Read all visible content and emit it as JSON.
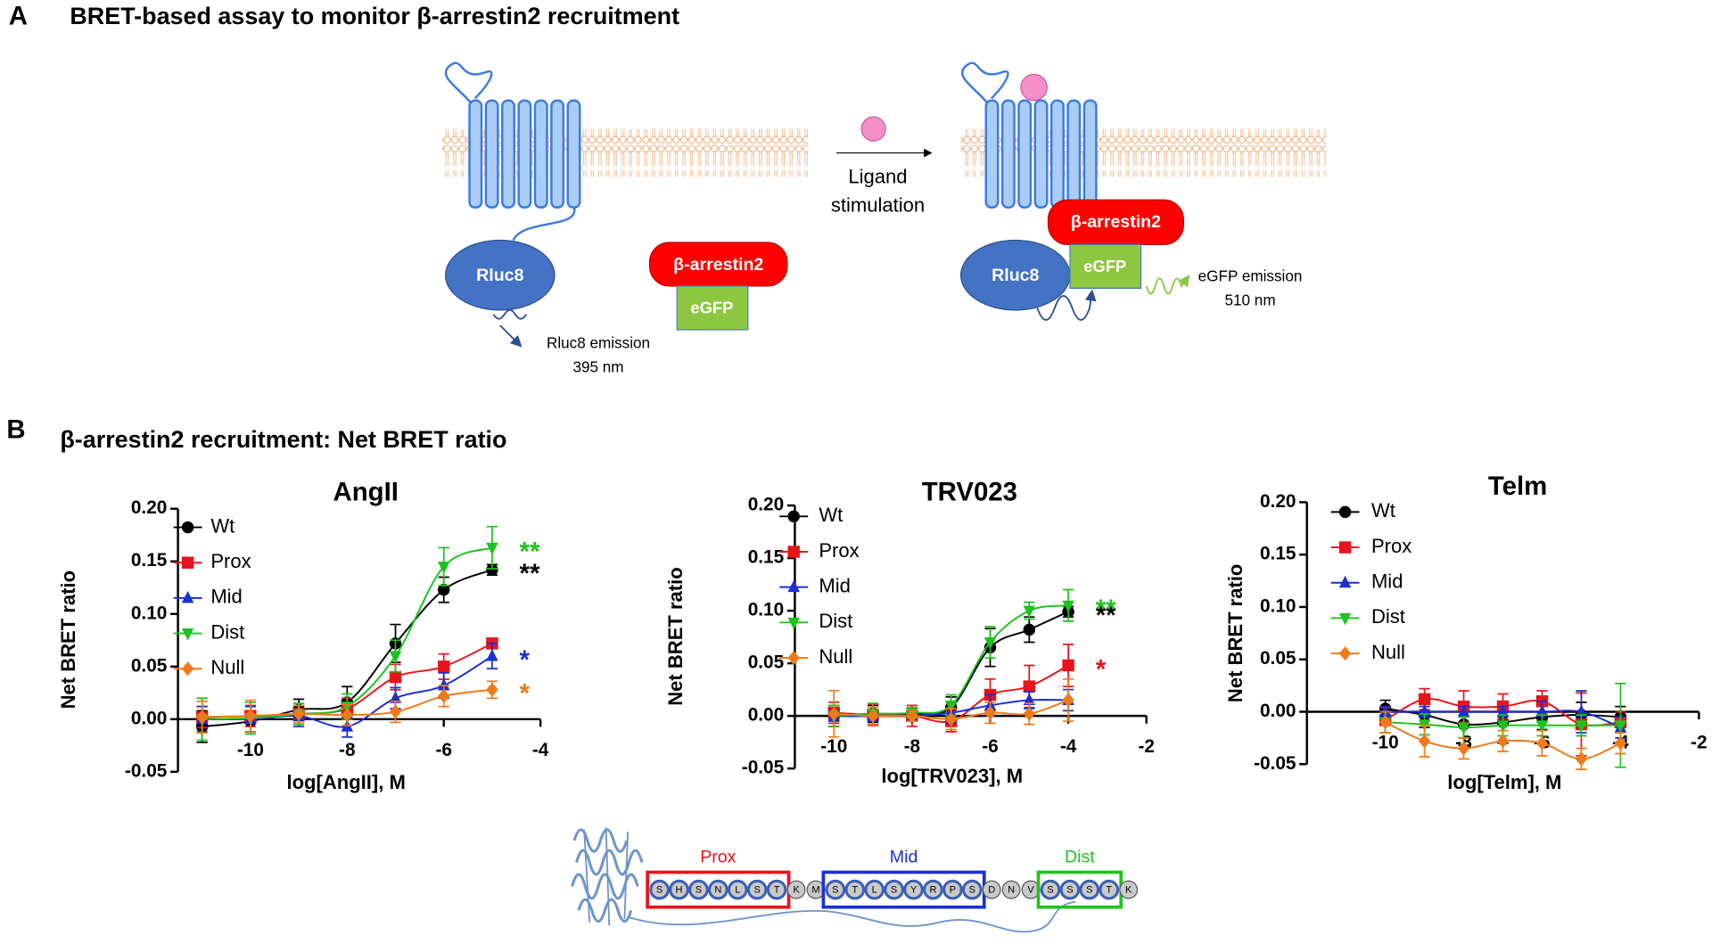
{
  "panel_a": {
    "label": "A",
    "title": "BRET-based assay to monitor β-arrestin2 recruitment",
    "left": {
      "donor": "Rluc8",
      "arrestin": "β-arrestin2",
      "acceptor": "eGFP",
      "emission": "Rluc8 emission",
      "wavelength": "395 nm"
    },
    "stimulus": [
      "Ligand",
      "stimulation"
    ],
    "right": {
      "donor": "Rluc8",
      "arrestin": "β-arrestin2",
      "acceptor": "eGFP",
      "emission": "eGFP emission",
      "wavelength": "510 nm"
    }
  },
  "panel_b": {
    "label": "B",
    "title": "β-arrestin2 recruitment: Net BRET ratio"
  },
  "chart_data": [
    {
      "type": "line",
      "title": "AngII",
      "x_label": "log[AngII], M",
      "y_label": "Net BRET ratio",
      "x": [
        -11,
        -10,
        -9,
        -8,
        -7,
        -6,
        -5
      ],
      "xlim": [
        -11.5,
        -4
      ],
      "xticks": [
        -10,
        -8,
        -6,
        -4
      ],
      "ylim": [
        -0.05,
        0.2
      ],
      "yticks": [
        {
          "value": -0.05,
          "label": "-0.05"
        },
        {
          "value": 0,
          "label": "0.00"
        },
        {
          "value": 0.05,
          "label": "0.05"
        },
        {
          "value": 0.1,
          "label": "0.10"
        },
        {
          "value": 0.15,
          "label": "0.15"
        },
        {
          "value": 0.2,
          "label": "0.20"
        }
      ],
      "series": [
        {
          "name": "Wt",
          "color": "#000000",
          "marker": "circle",
          "values": [
            -0.007,
            -0.002,
            0.009,
            0.016,
            0.072,
            0.123,
            0.142
          ],
          "errors": [
            0.015,
            0.01,
            0.01,
            0.015,
            0.018,
            0.012,
            0.005
          ],
          "significance": "**"
        },
        {
          "name": "Prox",
          "color": "#e8141b",
          "marker": "square",
          "values": [
            0.002,
            0.003,
            0.005,
            0.01,
            0.04,
            0.05,
            0.072
          ],
          "errors": [
            0.01,
            0.01,
            0.008,
            0.01,
            0.012,
            0.012,
            0.005
          ]
        },
        {
          "name": "Mid",
          "color": "#1a2fd4",
          "marker": "triangle-up",
          "values": [
            0,
            0,
            0.003,
            -0.007,
            0.02,
            0.032,
            0.06
          ],
          "errors": [
            0.012,
            0.012,
            0.01,
            0.01,
            0.01,
            0.012,
            0.012
          ],
          "significance": "*"
        },
        {
          "name": "Dist",
          "color": "#1ec21e",
          "marker": "triangle-down",
          "values": [
            0,
            0.001,
            0.005,
            0.012,
            0.06,
            0.145,
            0.163
          ],
          "errors": [
            0.02,
            0.015,
            0.01,
            0.012,
            0.015,
            0.018,
            0.02
          ],
          "significance": "**"
        },
        {
          "name": "Null",
          "color": "#f07a1a",
          "marker": "diamond",
          "values": [
            0.002,
            0.003,
            0.005,
            0.004,
            0.007,
            0.022,
            0.028
          ],
          "errors": [
            0.015,
            0.015,
            0.008,
            0.01,
            0.01,
            0.01,
            0.008
          ],
          "significance": "*"
        }
      ]
    },
    {
      "type": "line",
      "title": "TRV023",
      "x_label": "log[TRV023], M",
      "y_label": "Net BRET ratio",
      "x": [
        -10,
        -9,
        -8,
        -7,
        -6,
        -5,
        -4
      ],
      "xlim": [
        -11,
        -2
      ],
      "xticks": [
        -10,
        -8,
        -6,
        -4,
        -2
      ],
      "ylim": [
        -0.05,
        0.2
      ],
      "yticks": [
        {
          "value": -0.05,
          "label": "-0.05"
        },
        {
          "value": 0,
          "label": "0.00"
        },
        {
          "value": 0.05,
          "label": "0.05"
        },
        {
          "value": 0.1,
          "label": "0.10"
        },
        {
          "value": 0.15,
          "label": "0.15"
        },
        {
          "value": 0.2,
          "label": "0.20"
        }
      ],
      "series": [
        {
          "name": "Wt",
          "color": "#000000",
          "marker": "circle",
          "values": [
            0,
            0.002,
            0.002,
            0.008,
            0.065,
            0.082,
            0.099
          ],
          "errors": [
            0.01,
            0.008,
            0.005,
            0.01,
            0.018,
            0.012,
            0.005
          ],
          "significance": "**"
        },
        {
          "name": "Prox",
          "color": "#e8141b",
          "marker": "square",
          "values": [
            0.003,
            0.001,
            0,
            -0.005,
            0.02,
            0.028,
            0.048
          ],
          "errors": [
            0.01,
            0.01,
            0.01,
            0.01,
            0.015,
            0.02,
            0.02
          ],
          "significance": "*"
        },
        {
          "name": "Mid",
          "color": "#1a2fd4",
          "marker": "triangle-up",
          "values": [
            0,
            0,
            0,
            0.003,
            0.01,
            0.015,
            0.015
          ],
          "errors": [
            0.005,
            0.005,
            0.005,
            0.01,
            0.01,
            0.008,
            0.01
          ]
        },
        {
          "name": "Dist",
          "color": "#1ec21e",
          "marker": "triangle-down",
          "values": [
            0,
            0.002,
            0.003,
            0.01,
            0.07,
            0.1,
            0.105
          ],
          "errors": [
            0.01,
            0.01,
            0.005,
            0.01,
            0.015,
            0.008,
            0.015
          ],
          "significance": "**"
        },
        {
          "name": "Null",
          "color": "#f07a1a",
          "marker": "diamond",
          "values": [
            0.002,
            0,
            0,
            -0.003,
            0.003,
            0.002,
            0.015
          ],
          "errors": [
            0.022,
            0.008,
            0.005,
            0.01,
            0.01,
            0.01,
            0.02
          ]
        }
      ]
    },
    {
      "type": "line",
      "title": "Telm",
      "x_label": "log[Telm], M",
      "y_label": "Net BRET ratio",
      "x": [
        -10,
        -9,
        -8,
        -7,
        -6,
        -5,
        -4
      ],
      "xlim": [
        -12,
        -2
      ],
      "xticks": [
        -10,
        -8,
        -6,
        -4,
        -2
      ],
      "ylim": [
        -0.05,
        0.2
      ],
      "yticks": [
        {
          "value": -0.05,
          "label": "-0.05"
        },
        {
          "value": 0,
          "label": "0.00"
        },
        {
          "value": 0.05,
          "label": "0.05"
        },
        {
          "value": 0.1,
          "label": "0.10"
        },
        {
          "value": 0.15,
          "label": "0.15"
        },
        {
          "value": 0.2,
          "label": "0.20"
        }
      ],
      "series": [
        {
          "name": "Wt",
          "color": "#000000",
          "marker": "circle",
          "values": [
            0.003,
            -0.003,
            -0.012,
            -0.01,
            -0.005,
            -0.003,
            -0.005
          ],
          "errors": [
            0.008,
            0.012,
            0.02,
            0.02,
            0.012,
            0.012,
            0.01
          ]
        },
        {
          "name": "Prox",
          "color": "#e8141b",
          "marker": "square",
          "values": [
            -0.008,
            0.012,
            0.005,
            0.005,
            0.01,
            -0.012,
            -0.01
          ],
          "errors": [
            0.012,
            0.01,
            0.015,
            0.012,
            0.01,
            0.03,
            0.01
          ]
        },
        {
          "name": "Mid",
          "color": "#1a2fd4",
          "marker": "triangle-up",
          "values": [
            0,
            0,
            0,
            0,
            0,
            0,
            -0.015
          ],
          "errors": [
            0.005,
            0.005,
            0.005,
            0.005,
            0.01,
            0.02,
            0.01
          ]
        },
        {
          "name": "Dist",
          "color": "#1ec21e",
          "marker": "triangle-down",
          "values": [
            -0.01,
            -0.012,
            -0.015,
            -0.013,
            -0.013,
            -0.013,
            -0.013
          ],
          "errors": [
            0.01,
            0.01,
            0.01,
            0.01,
            0.01,
            0.01,
            0.04
          ]
        },
        {
          "name": "Null",
          "color": "#f07a1a",
          "marker": "diamond",
          "values": [
            -0.01,
            -0.028,
            -0.035,
            -0.028,
            -0.03,
            -0.045,
            -0.03
          ],
          "errors": [
            0.01,
            0.015,
            0.01,
            0.01,
            0.012,
            0.01,
            0.01
          ]
        }
      ]
    }
  ],
  "sequence": [
    {
      "name": "Prox",
      "color": "#e8141b",
      "residues": [
        "S",
        "H",
        "S",
        "N",
        "L",
        "S",
        "T"
      ]
    },
    {
      "residues": [
        "K",
        "M"
      ]
    },
    {
      "name": "Mid",
      "color": "#1a2fd4",
      "residues": [
        "S",
        "T",
        "L",
        "S",
        "Y",
        "R",
        "P",
        "S"
      ]
    },
    {
      "residues": [
        "D",
        "N",
        "V"
      ]
    },
    {
      "name": "Dist",
      "color": "#1ec21e",
      "residues": [
        "S",
        "S",
        "S",
        "T"
      ]
    },
    {
      "residues": [
        "K"
      ]
    }
  ]
}
